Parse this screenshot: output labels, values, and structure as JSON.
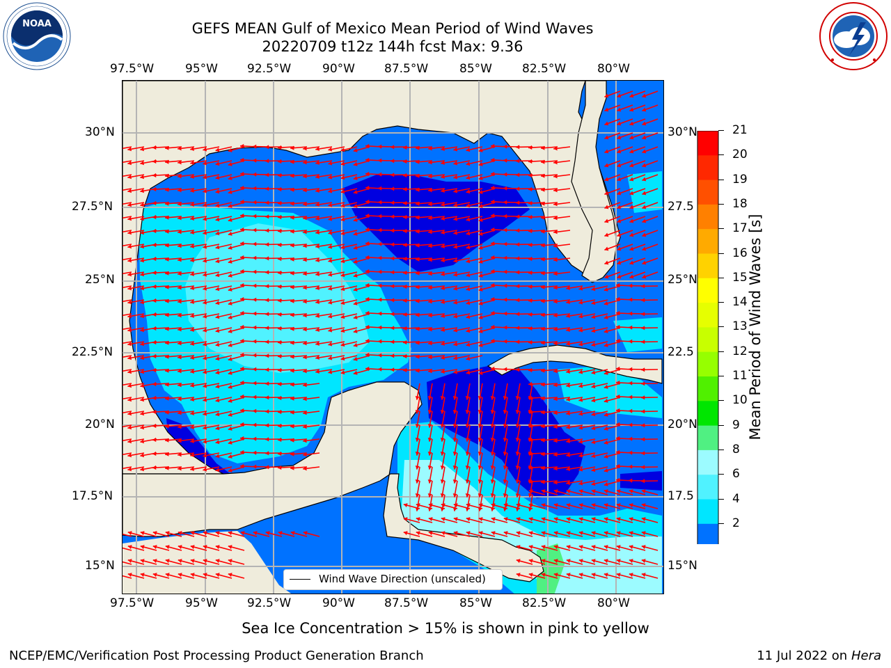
{
  "header": {
    "title_line1": "GEFS MEAN Gulf of Mexico Mean Period of Wind Waves",
    "title_line2": "20220709 t12z 144h fcst   Max: 9.36"
  },
  "logos": {
    "noaa_text": "NOAA",
    "noaa_ring": "NATIONAL OCEANIC AND ATMOSPHERIC ADMINISTRATION · U.S. DEPARTMENT OF COMMERCE",
    "nws_ring": "NATIONAL WEATHER SERVICE"
  },
  "map": {
    "lon_labels": [
      "97.5°W",
      "95°W",
      "92.5°W",
      "90°W",
      "87.5°W",
      "85°W",
      "82.5°W",
      "80°W"
    ],
    "lat_labels_left": [
      "30°N",
      "27.5°N",
      "25°N",
      "22.5°N",
      "20°N",
      "17.5°N",
      "15°N"
    ],
    "lat_labels_right": [
      "30°N",
      "27.5",
      "25°N",
      "22.5",
      "20°N",
      "17.5",
      "15°N"
    ],
    "legend_label": "Wind Wave Direction (unscaled)",
    "colors": {
      "land": "#efecdc",
      "band_2_4": "#0072ff",
      "band_4_6": "#00e6ff",
      "band_6_8": "#50f2ff",
      "band_8_9": "#9cfbff",
      "band_lt2": "#0000e0",
      "band_9_10": "#50f082",
      "arrow": "#ff0000",
      "grid": "#b4b4b4"
    }
  },
  "colorbar": {
    "label": "Mean Period of Wind Waves [s]",
    "ticks": [
      "21",
      "20",
      "19",
      "18",
      "17",
      "16",
      "15",
      "14",
      "13",
      "12",
      "11",
      "10",
      "9",
      "8",
      "6",
      "4",
      "2"
    ],
    "colors": [
      "#ff0000",
      "#ff2800",
      "#ff5000",
      "#ff8000",
      "#ffaa00",
      "#ffd200",
      "#ffff00",
      "#e6ff00",
      "#c8ff00",
      "#96ff00",
      "#50f000",
      "#00e600",
      "#50f082",
      "#9cfbff",
      "#50f2ff",
      "#00e6ff",
      "#0072ff"
    ],
    "extend_color": "#0000e0"
  },
  "notes": {
    "sea_ice": "Sea Ice Concentration > 15% is shown in pink to yellow"
  },
  "footer": {
    "left": "NCEP/EMC/Verification Post Processing Product Generation Branch",
    "date_prefix": "11 Jul 2022 on ",
    "host": "Hera"
  }
}
